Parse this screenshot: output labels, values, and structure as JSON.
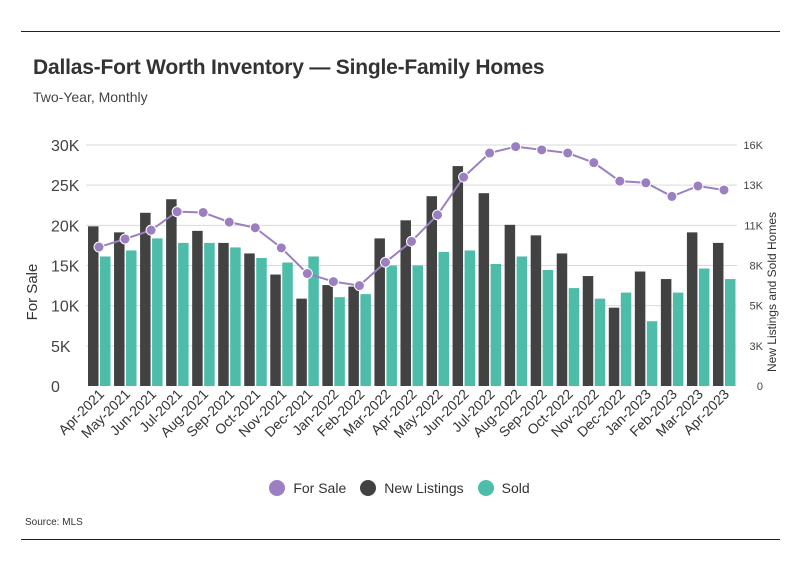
{
  "title": "Dallas-Fort Worth Inventory — Single-Family Homes",
  "subtitle": "Two-Year, Monthly",
  "source": "Source: MLS",
  "colors": {
    "for_sale": "#9b7fc0",
    "new_listings": "#424242",
    "sold": "#4dbda9",
    "grid": "#d9d9d9"
  },
  "legend": [
    {
      "label": "For Sale",
      "color": "#9b7fc0"
    },
    {
      "label": "New Listings",
      "color": "#424242"
    },
    {
      "label": "Sold",
      "color": "#4dbda9"
    }
  ],
  "chart_data": {
    "type": "bar",
    "categories": [
      "Apr-2021",
      "May-2021",
      "Jun-2021",
      "Jul-2021",
      "Aug-2021",
      "Sep-2021",
      "Oct-2021",
      "Nov-2021",
      "Dec-2021",
      "Jan-2022",
      "Feb-2022",
      "Mar-2022",
      "Apr-2022",
      "May-2022",
      "Jun-2022",
      "Jul-2022",
      "Aug-2022",
      "Sep-2022",
      "Oct-2022",
      "Nov-2022",
      "Dec-2022",
      "Jan-2023",
      "Feb-2023",
      "Mar-2023",
      "Apr-2023"
    ],
    "ylabel_left": "For Sale",
    "ylabel_right": "New Listings and Sold Homes",
    "ylim_left": [
      0,
      30000
    ],
    "ylim_right": [
      0,
      16000
    ],
    "yticks_left": [
      "0",
      "5K",
      "10K",
      "15K",
      "20K",
      "25K",
      "30K"
    ],
    "yticks_right": [
      "0",
      "3K",
      "5K",
      "8K",
      "11K",
      "13K",
      "16K"
    ],
    "grid": true,
    "series": [
      {
        "name": "For Sale",
        "kind": "line",
        "axis": "left",
        "values": [
          17300,
          18300,
          19400,
          21700,
          21600,
          20400,
          19700,
          17200,
          14000,
          13000,
          12500,
          15400,
          18000,
          21300,
          26000,
          29000,
          29800,
          29400,
          29000,
          27800,
          25500,
          25300,
          23600,
          24900,
          24400
        ]
      },
      {
        "name": "New Listings",
        "kind": "bar",
        "axis": "right",
        "values": [
          10600,
          10200,
          11500,
          12400,
          10300,
          9500,
          8800,
          7400,
          5800,
          6700,
          6600,
          9800,
          11000,
          12600,
          14600,
          12800,
          10700,
          10000,
          8800,
          7300,
          5200,
          7600,
          7100,
          10200,
          9500
        ]
      },
      {
        "name": "Sold",
        "kind": "bar",
        "axis": "right",
        "values": [
          8600,
          9000,
          9800,
          9500,
          9500,
          9200,
          8500,
          8200,
          8600,
          5900,
          6100,
          8000,
          8000,
          8900,
          9000,
          8100,
          8600,
          7700,
          6500,
          5800,
          6200,
          4300,
          6200,
          7800,
          7100
        ]
      }
    ]
  }
}
